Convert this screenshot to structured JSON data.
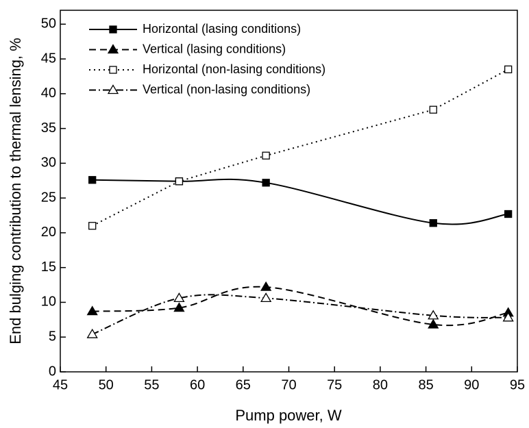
{
  "chart_data": {
    "type": "line",
    "x_label": "Pump power, W",
    "y_label": "End bulging contribution to thermal lensing, %",
    "x": [
      48.5,
      58,
      67.5,
      85.8,
      94
    ],
    "xlim": [
      45,
      95
    ],
    "xticks": [
      45,
      50,
      55,
      60,
      65,
      70,
      75,
      80,
      85,
      90,
      95
    ],
    "ylim": [
      0,
      52
    ],
    "yticks": [
      0,
      5,
      10,
      15,
      20,
      25,
      30,
      35,
      40,
      45,
      50
    ],
    "legend": "upper left",
    "series": [
      {
        "name": "Horizontal (lasing conditions)",
        "color": "#000000",
        "dash": "solid",
        "marker": "square-filled",
        "smooth": true,
        "values": [
          27.6,
          27.4,
          27.2,
          21.4,
          22.7
        ]
      },
      {
        "name": "Vertical (lasing conditions)",
        "color": "#000000",
        "dash": "dashed",
        "marker": "triangle-filled",
        "smooth": true,
        "values": [
          8.7,
          9.2,
          12.2,
          6.8,
          8.5
        ]
      },
      {
        "name": "Horizontal (non-lasing conditions)",
        "color": "#000000",
        "dash": "dotted",
        "marker": "square-open",
        "smooth": false,
        "values": [
          21.0,
          27.4,
          31.1,
          37.7,
          43.5
        ]
      },
      {
        "name": "Vertical (non-lasing conditions)",
        "color": "#000000",
        "dash": "dashdot",
        "marker": "triangle-open",
        "smooth": true,
        "values": [
          5.4,
          10.6,
          10.6,
          8.1,
          7.8
        ]
      }
    ]
  }
}
